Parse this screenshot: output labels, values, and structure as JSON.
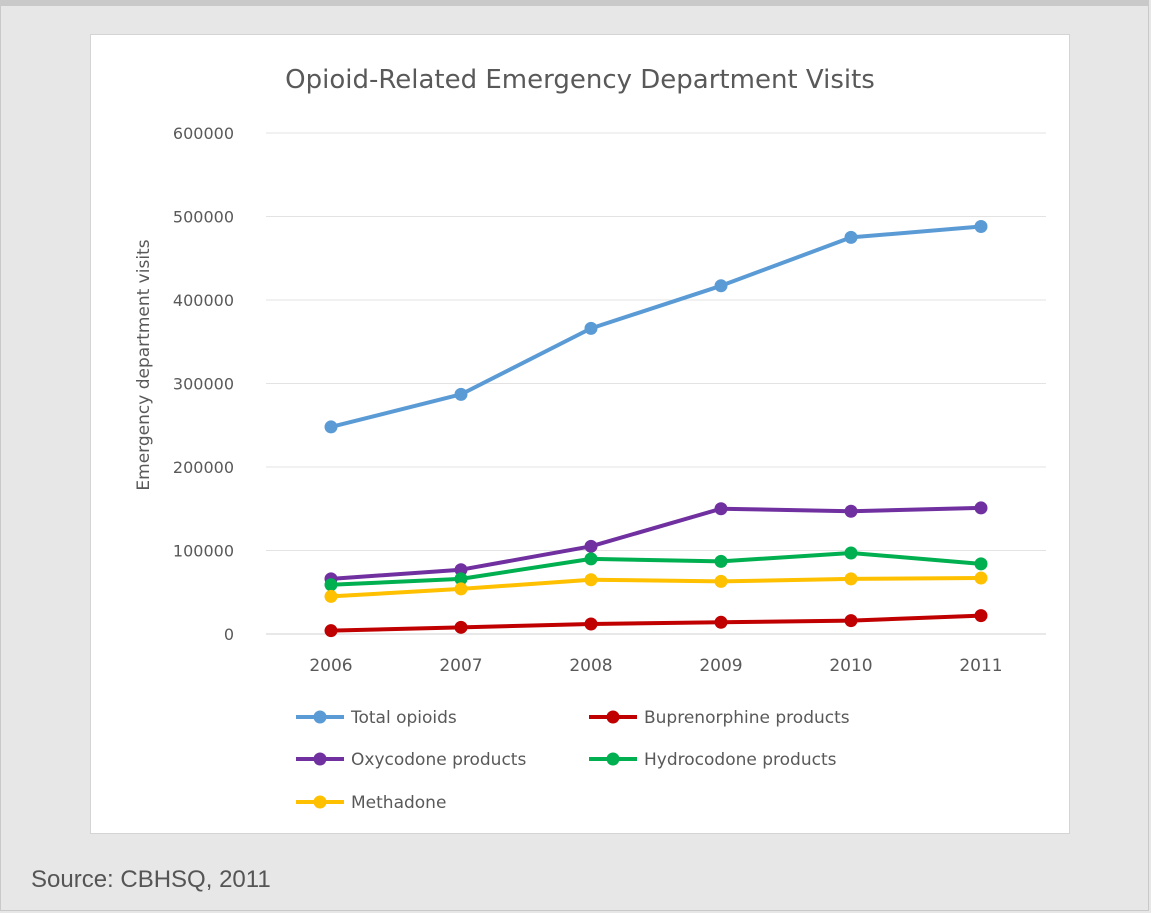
{
  "caption": {
    "source": "Source: CBHSQ, 2011"
  },
  "chart_data": {
    "type": "line",
    "title": "Opioid-Related Emergency Department Visits",
    "xlabel": "",
    "ylabel": "Emergency department visits",
    "x": [
      "2006",
      "2007",
      "2008",
      "2009",
      "2010",
      "2011"
    ],
    "ylim": [
      0,
      600000
    ],
    "yticks": [
      "0",
      "100000",
      "200000",
      "300000",
      "400000",
      "500000",
      "600000"
    ],
    "grid": true,
    "legend_position": "bottom",
    "series": [
      {
        "name": "Total opioids",
        "color": "#5b9bd5",
        "values": [
          248000,
          287000,
          366000,
          417000,
          475000,
          488000
        ]
      },
      {
        "name": "Buprenorphine products",
        "color": "#c00000",
        "values": [
          4000,
          8000,
          12000,
          14000,
          16000,
          22000
        ]
      },
      {
        "name": "Oxycodone products",
        "color": "#7030a0",
        "values": [
          66000,
          77000,
          105000,
          150000,
          147000,
          151000
        ]
      },
      {
        "name": "Hydrocodone products",
        "color": "#00b050",
        "values": [
          59000,
          66000,
          90000,
          87000,
          97000,
          84000
        ]
      },
      {
        "name": "Methadone",
        "color": "#ffc000",
        "values": [
          45000,
          54000,
          65000,
          63000,
          66000,
          67000
        ]
      }
    ]
  }
}
